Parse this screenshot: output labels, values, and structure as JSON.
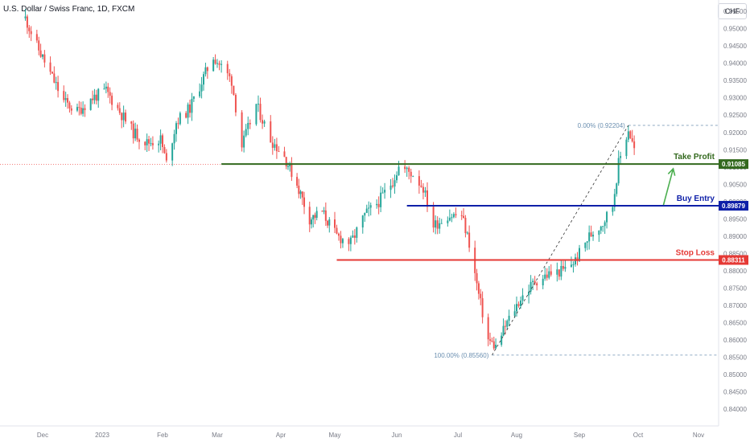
{
  "header": {
    "title": "U.S. Dollar / Swiss Franc, 1D, FXCM",
    "currency": "CHF"
  },
  "colors": {
    "up": "#26a69a",
    "down": "#ef5350",
    "take_profit": "#33691e",
    "buy_entry": "#0d1fa8",
    "stop_loss": "#e53935",
    "fib": "#6b8fb0",
    "arrow": "#4caf50",
    "axis_text": "#787b86"
  },
  "annotations": {
    "take_profit_label": "Take Profit",
    "take_profit_value": "0.91085",
    "buy_entry_label": "Buy Entry",
    "buy_entry_value": "0.89879",
    "stop_loss_label": "Stop Loss",
    "stop_loss_value": "0.88311",
    "fib_top_label": "0.00% (0.92204)",
    "fib_bottom_label": "100.00% (0.85560)"
  },
  "chart_data": {
    "type": "candlestick",
    "title": "U.S. Dollar / Swiss Franc, 1D, FXCM",
    "ylim": [
      0.8375,
      0.959
    ],
    "y_ticks": [
      "0.95500",
      "0.95000",
      "0.94500",
      "0.94000",
      "0.93500",
      "0.93000",
      "0.92500",
      "0.92000",
      "0.91500",
      "0.91000",
      "0.90500",
      "0.90000",
      "0.89500",
      "0.89000",
      "0.88500",
      "0.88000",
      "0.87500",
      "0.87000",
      "0.86500",
      "0.86000",
      "0.85500",
      "0.85000",
      "0.84500",
      "0.84000"
    ],
    "x_ticks": [
      "Dec",
      "2023",
      "Feb",
      "Mar",
      "Apr",
      "May",
      "Jun",
      "Jul",
      "Aug",
      "Sep",
      "Oct",
      "Nov"
    ],
    "price_path": [
      [
        "2022-11-22",
        0.953
      ],
      [
        "2022-11-28",
        0.945
      ],
      [
        "2022-12-05",
        0.937
      ],
      [
        "2022-12-12",
        0.929
      ],
      [
        "2022-12-19",
        0.926
      ],
      [
        "2022-12-27",
        0.93
      ],
      [
        "2023-01-03",
        0.932
      ],
      [
        "2023-01-10",
        0.926
      ],
      [
        "2023-01-17",
        0.92
      ],
      [
        "2023-01-24",
        0.917
      ],
      [
        "2023-01-31",
        0.918
      ],
      [
        "2023-02-03",
        0.911
      ],
      [
        "2023-02-08",
        0.923
      ],
      [
        "2023-02-15",
        0.927
      ],
      [
        "2023-02-22",
        0.936
      ],
      [
        "2023-02-27",
        0.942
      ],
      [
        "2023-03-03",
        0.939
      ],
      [
        "2023-03-08",
        0.935
      ],
      [
        "2023-03-13",
        0.916
      ],
      [
        "2023-03-20",
        0.928
      ],
      [
        "2023-03-27",
        0.918
      ],
      [
        "2023-04-03",
        0.913
      ],
      [
        "2023-04-10",
        0.905
      ],
      [
        "2023-04-17",
        0.895
      ],
      [
        "2023-04-24",
        0.897
      ],
      [
        "2023-05-02",
        0.89
      ],
      [
        "2023-05-09",
        0.888
      ],
      [
        "2023-05-16",
        0.896
      ],
      [
        "2023-05-23",
        0.9
      ],
      [
        "2023-05-30",
        0.906
      ],
      [
        "2023-06-02",
        0.91
      ],
      [
        "2023-06-09",
        0.908
      ],
      [
        "2023-06-14",
        0.904
      ],
      [
        "2023-06-19",
        0.893
      ],
      [
        "2023-06-26",
        0.896
      ],
      [
        "2023-07-03",
        0.896
      ],
      [
        "2023-07-07",
        0.888
      ],
      [
        "2023-07-12",
        0.873
      ],
      [
        "2023-07-17",
        0.86
      ],
      [
        "2023-07-21",
        0.858
      ],
      [
        "2023-07-27",
        0.865
      ],
      [
        "2023-08-03",
        0.872
      ],
      [
        "2023-08-10",
        0.877
      ],
      [
        "2023-08-17",
        0.879
      ],
      [
        "2023-08-24",
        0.88
      ],
      [
        "2023-08-30",
        0.883
      ],
      [
        "2023-09-06",
        0.89
      ],
      [
        "2023-09-13",
        0.894
      ],
      [
        "2023-09-18",
        0.899
      ],
      [
        "2023-09-21",
        0.911
      ],
      [
        "2023-09-26",
        0.921
      ],
      [
        "2023-09-29",
        0.915
      ],
      [
        "2023-10-02",
        0.912
      ]
    ],
    "horizontal_levels": [
      {
        "label": "Take Profit",
        "value": 0.91085,
        "from": "2023-03-03"
      },
      {
        "label": "Buy Entry",
        "value": 0.89879,
        "from": "2023-06-06"
      },
      {
        "label": "Stop Loss",
        "value": 0.88311,
        "from": "2023-05-02"
      }
    ],
    "fibonacci": [
      {
        "label": "0.00% (0.92204)",
        "value": 0.92204
      },
      {
        "label": "100.00% (0.85560)",
        "value": 0.8556
      }
    ],
    "fib_anchor_dates": [
      "2023-07-19",
      "2023-09-26"
    ],
    "current_price": 0.9108,
    "arrow": {
      "from_date": "2023-10-14",
      "from_value": 0.899,
      "to_date": "2023-10-19",
      "to_value": 0.9095
    }
  }
}
